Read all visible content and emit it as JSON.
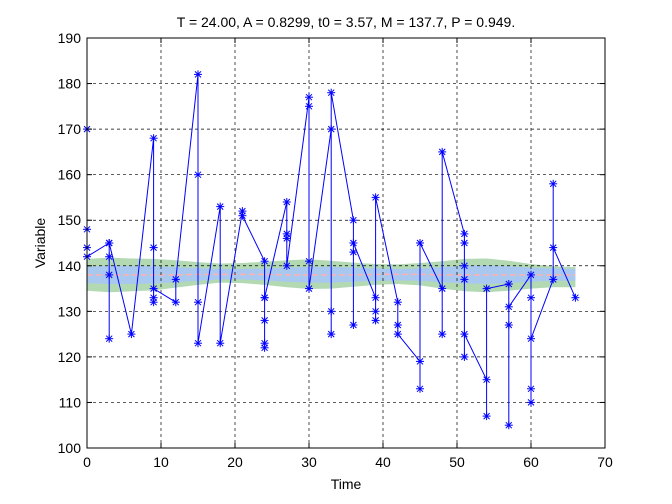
{
  "chart_data": {
    "type": "line",
    "title": "T = 24.00, A = 0.8299, t0 = 3.57, M = 137.7, P = 0.949.",
    "xlabel": "Time",
    "ylabel": "Variable",
    "xlim": [
      0,
      70
    ],
    "ylim": [
      100,
      190
    ],
    "xticks": [
      0,
      10,
      20,
      30,
      40,
      50,
      60,
      70
    ],
    "yticks": [
      100,
      110,
      120,
      130,
      140,
      150,
      160,
      170,
      180,
      190
    ],
    "grid": true,
    "colors": {
      "series": "#0000ff",
      "band_outer": "#b3d9b3",
      "band_inner": "#a8c8f0",
      "mean_line": "#ffb0b0"
    },
    "series": [
      {
        "values_line": true,
        "x": [
          0,
          0,
          0,
          0,
          3,
          3,
          3,
          3,
          3,
          6,
          9,
          9,
          9,
          9,
          9,
          12,
          12,
          15,
          15,
          15,
          15,
          18,
          18,
          21,
          21,
          24,
          24,
          24,
          24,
          24,
          24,
          27,
          27,
          27,
          27,
          30,
          30,
          30,
          30,
          33,
          33,
          33,
          33,
          36,
          36,
          36,
          36,
          39,
          39,
          39,
          39,
          42,
          42,
          42,
          45,
          45,
          45,
          48,
          48,
          48,
          51,
          51,
          51,
          51,
          51,
          51,
          54,
          54,
          54,
          57,
          57,
          57,
          57,
          60,
          60,
          60,
          60,
          60,
          63,
          63,
          63,
          66
        ],
        "y": [
          170,
          148,
          144,
          142,
          145,
          142,
          138,
          124,
          145,
          125,
          168,
          144,
          133,
          132,
          135,
          132,
          137,
          182,
          160,
          132,
          123,
          153,
          123,
          152,
          151,
          141,
          133,
          128,
          123,
          122,
          133,
          154,
          147,
          146,
          140,
          177,
          175,
          141,
          135,
          170,
          130,
          125,
          178,
          150,
          143,
          127,
          145,
          133,
          130,
          128,
          155,
          132,
          127,
          125,
          119,
          113,
          145,
          135,
          125,
          165,
          147,
          145,
          140,
          120,
          137,
          125,
          115,
          107,
          135,
          136,
          127,
          105,
          131,
          138,
          133,
          113,
          110,
          124,
          137,
          158,
          144,
          133
        ]
      }
    ],
    "band": {
      "x": [
        0,
        3,
        6,
        9,
        12,
        15,
        18,
        21,
        24,
        27,
        30,
        33,
        36,
        39,
        42,
        45,
        48,
        51,
        54,
        57,
        60,
        63,
        66
      ],
      "outer_upper": [
        141.5,
        141.8,
        141.6,
        141.5,
        141.2,
        140.8,
        140.5,
        140.6,
        140.9,
        141.2,
        141.4,
        141.1,
        140.7,
        140.4,
        140.3,
        140.6,
        141.0,
        141.5,
        141.6,
        141.1,
        140.4,
        139.9,
        139.7
      ],
      "outer_lower": [
        134.5,
        134.2,
        134.4,
        134.6,
        135.2,
        135.8,
        136.3,
        136.2,
        135.8,
        135.3,
        134.9,
        135.0,
        135.4,
        135.8,
        136.0,
        135.7,
        135.0,
        134.4,
        134.2,
        134.5,
        135.0,
        135.3,
        135.3
      ],
      "inner_upper": [
        139.8,
        140.0,
        140.0,
        139.9,
        139.7,
        139.5,
        139.3,
        139.3,
        139.4,
        139.6,
        139.8,
        139.8,
        139.6,
        139.4,
        139.3,
        139.4,
        139.7,
        140.0,
        140.1,
        139.9,
        139.6,
        139.4,
        139.3
      ],
      "inner_lower": [
        136.2,
        136.0,
        136.0,
        136.1,
        136.4,
        136.7,
        137.0,
        137.0,
        136.8,
        136.5,
        136.3,
        136.3,
        136.5,
        136.7,
        136.8,
        136.7,
        136.4,
        136.1,
        136.0,
        136.2,
        136.5,
        136.7,
        136.7
      ],
      "mean": [
        138.0,
        138.0,
        138.0,
        138.0,
        138.0,
        138.1,
        138.1,
        138.1,
        138.1,
        138.0,
        138.0,
        138.0,
        138.0,
        138.1,
        138.1,
        138.1,
        138.0,
        138.0,
        138.0,
        138.0,
        138.0,
        138.0,
        138.0
      ]
    }
  }
}
